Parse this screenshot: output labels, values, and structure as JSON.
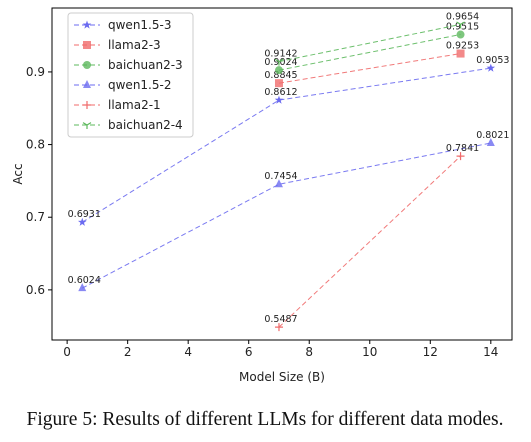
{
  "chart_data": {
    "type": "line",
    "caption": "Figure 5: Results of different LLMs for different data modes.",
    "xlabel": "Model Size (B)",
    "ylabel": "Acc",
    "xlim": [
      -0.5,
      14.7
    ],
    "ylim": [
      0.531,
      0.988
    ],
    "xticks": [
      0,
      2,
      4,
      6,
      8,
      10,
      12,
      14
    ],
    "yticks": [
      0.6,
      0.7,
      0.8,
      0.9
    ],
    "legend": "upper left",
    "line_style": "dashed",
    "series": [
      {
        "name": "qwen1.5-3",
        "color": "#6b6bf0",
        "marker": "star",
        "x": [
          0.5,
          7,
          14
        ],
        "values": [
          0.6931,
          0.8612,
          0.9053
        ]
      },
      {
        "name": "llama2-3",
        "color": "#f06b6b",
        "marker": "square",
        "x": [
          7,
          13
        ],
        "values": [
          0.8845,
          0.9253
        ]
      },
      {
        "name": "baichuan2-3",
        "color": "#5cb85c",
        "marker": "circle",
        "x": [
          7,
          13
        ],
        "values": [
          0.9024,
          0.9515
        ]
      },
      {
        "name": "qwen1.5-2",
        "color": "#6b6bf0",
        "marker": "triangle",
        "x": [
          0.5,
          7,
          14
        ],
        "values": [
          0.6024,
          0.7454,
          0.8021
        ]
      },
      {
        "name": "llama2-1",
        "color": "#f06b6b",
        "marker": "plus",
        "x": [
          7,
          13
        ],
        "values": [
          0.5487,
          0.7841
        ]
      },
      {
        "name": "baichuan2-4",
        "color": "#5cb85c",
        "marker": "tri",
        "x": [
          7,
          13
        ],
        "values": [
          0.9142,
          0.9654
        ]
      }
    ]
  }
}
